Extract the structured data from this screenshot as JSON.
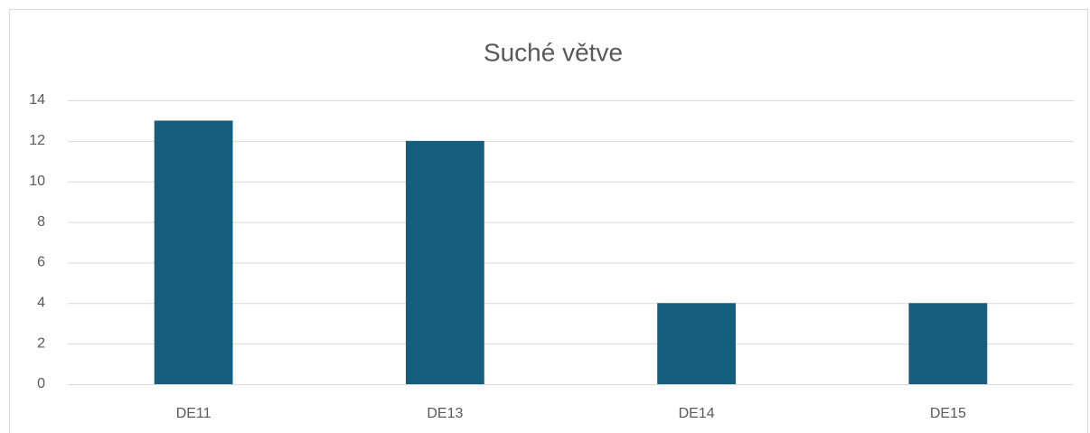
{
  "chart_data": {
    "type": "bar",
    "title": "Suché větve",
    "categories": [
      "DE11",
      "DE13",
      "DE14",
      "DE15"
    ],
    "values": [
      13,
      12,
      4,
      4
    ],
    "color": "#155e7e",
    "ylim": [
      0,
      14
    ],
    "yticks": [
      0,
      2,
      4,
      6,
      8,
      10,
      12,
      14
    ],
    "grid": true
  }
}
